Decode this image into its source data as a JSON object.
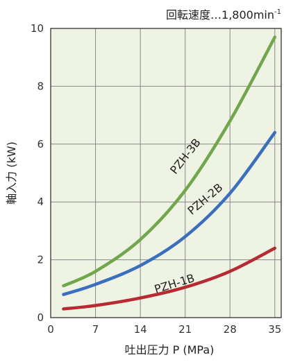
{
  "chart_data": {
    "type": "line",
    "annotation": "回転速度…1,800min",
    "annotation_sup": "-1",
    "xlabel": "吐出圧力 P (MPa)",
    "ylabel": "軸入力 (kW)",
    "xlim": [
      0,
      36
    ],
    "ylim": [
      0,
      10
    ],
    "xticks": [
      0,
      7,
      14,
      21,
      28,
      35
    ],
    "yticks": [
      0,
      2,
      4,
      6,
      8,
      10
    ],
    "grid": true,
    "series": [
      {
        "name": "PZH-1B",
        "color": "#b82a31",
        "x": [
          2,
          7,
          14,
          21,
          28,
          35
        ],
        "y": [
          0.3,
          0.42,
          0.68,
          1.05,
          1.6,
          2.4
        ]
      },
      {
        "name": "PZH-2B",
        "color": "#3a6fc0",
        "x": [
          2,
          7,
          14,
          21,
          28,
          35
        ],
        "y": [
          0.8,
          1.15,
          1.8,
          2.8,
          4.3,
          6.4
        ]
      },
      {
        "name": "PZH-3B",
        "color": "#6ea84a",
        "x": [
          2,
          7,
          14,
          21,
          28,
          35
        ],
        "y": [
          1.1,
          1.6,
          2.7,
          4.4,
          6.8,
          9.7
        ]
      }
    ]
  }
}
